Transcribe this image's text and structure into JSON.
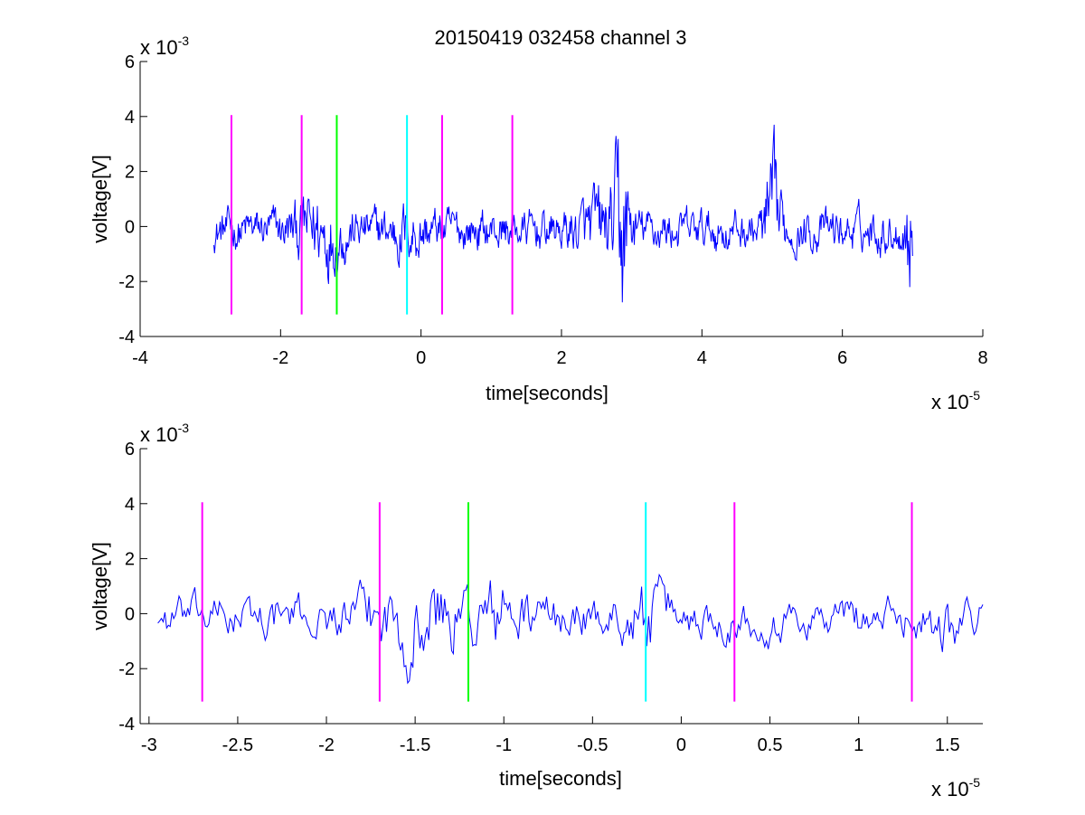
{
  "figure": {
    "title": "20150419 032458 channel 3"
  },
  "chart_data": [
    {
      "type": "line",
      "title": "20150419 032458 channel 3",
      "xlabel": "time[seconds]",
      "ylabel": "voltage[V]",
      "x_multiplier_label": "x 10",
      "x_multiplier_exp": "-5",
      "y_multiplier_label": "x 10",
      "y_multiplier_exp": "-3",
      "xlim": [
        -4,
        8
      ],
      "ylim": [
        -4,
        6
      ],
      "x_ticks": [
        -4,
        -2,
        0,
        2,
        4,
        6,
        8
      ],
      "x_tick_labels": [
        "-4",
        "-2",
        "0",
        "2",
        "4",
        "6",
        "8"
      ],
      "y_ticks": [
        -4,
        -2,
        0,
        2,
        4,
        6
      ],
      "y_tick_labels": [
        "-4",
        "-2",
        "0",
        "2",
        "4",
        "6"
      ],
      "grid": false,
      "signal": {
        "color": "#0000ff",
        "x_start": -2.95,
        "x_end": 7.0,
        "points": 1000,
        "amplitude": 0.55,
        "bursts": [
          {
            "center": -1.45,
            "width": 0.35,
            "amp": 1.2
          },
          {
            "center": -0.2,
            "width": 0.25,
            "amp": 0.7
          },
          {
            "center": 2.6,
            "width": 0.35,
            "amp": 1.0
          },
          {
            "center": 2.85,
            "width": 0.1,
            "amp": 3.5
          },
          {
            "center": 5.0,
            "width": 0.12,
            "amp": 2.2
          },
          {
            "center": 6.95,
            "width": 0.05,
            "amp": 2.5
          }
        ]
      },
      "markers": [
        {
          "x": -2.7,
          "color": "#ff00ff"
        },
        {
          "x": -1.7,
          "color": "#ff00ff"
        },
        {
          "x": -1.2,
          "color": "#00ff00"
        },
        {
          "x": -0.2,
          "color": "#00ffff"
        },
        {
          "x": 0.3,
          "color": "#ff00ff"
        },
        {
          "x": 1.3,
          "color": "#ff00ff"
        }
      ],
      "marker_range": [
        -3.2,
        4.05
      ]
    },
    {
      "type": "line",
      "xlabel": "time[seconds]",
      "ylabel": "voltage[V]",
      "x_multiplier_label": "x 10",
      "x_multiplier_exp": "-5",
      "y_multiplier_label": "x 10",
      "y_multiplier_exp": "-3",
      "xlim": [
        -3.05,
        1.7
      ],
      "ylim": [
        -4,
        6
      ],
      "x_ticks": [
        -3,
        -2.5,
        -2,
        -1.5,
        -1,
        -0.5,
        0,
        0.5,
        1,
        1.5
      ],
      "x_tick_labels": [
        "-3",
        "-2.5",
        "-2",
        "-1.5",
        "-1",
        "-0.5",
        "0",
        "0.5",
        "1",
        "1.5"
      ],
      "y_ticks": [
        -4,
        -2,
        0,
        2,
        4,
        6
      ],
      "y_tick_labels": [
        "-4",
        "-2",
        "0",
        "2",
        "4",
        "6"
      ],
      "grid": false,
      "signal": {
        "color": "#0000ff",
        "x_start": -2.95,
        "x_end": 1.7,
        "points": 470,
        "amplitude": 0.55,
        "bursts": [
          {
            "center": -1.45,
            "width": 0.3,
            "amp": 1.3
          },
          {
            "center": -1.0,
            "width": 0.15,
            "amp": 1.0
          },
          {
            "center": -0.2,
            "width": 0.1,
            "amp": 0.9
          },
          {
            "center": 1.5,
            "width": 0.1,
            "amp": 0.6
          }
        ]
      },
      "markers": [
        {
          "x": -2.7,
          "color": "#ff00ff"
        },
        {
          "x": -1.7,
          "color": "#ff00ff"
        },
        {
          "x": -1.2,
          "color": "#00ff00"
        },
        {
          "x": -0.2,
          "color": "#00ffff"
        },
        {
          "x": 0.3,
          "color": "#ff00ff"
        },
        {
          "x": 1.3,
          "color": "#ff00ff"
        }
      ],
      "marker_range": [
        -3.2,
        4.05
      ]
    }
  ]
}
